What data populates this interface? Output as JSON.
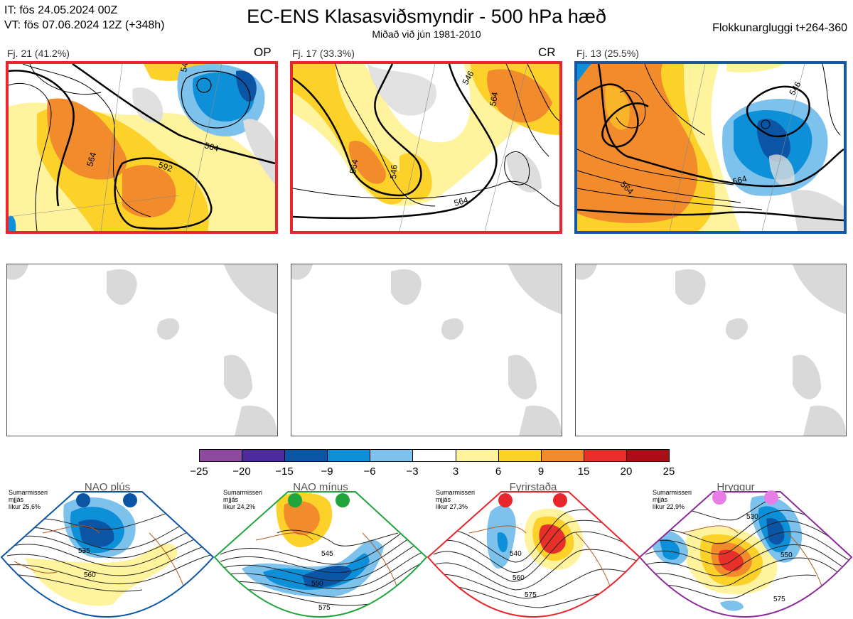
{
  "header": {
    "init_line": "IT: fös 24.05.2024 00Z",
    "valid_line": "VT: fös 07.06.2024 12Z  (+348h)",
    "title": "EC-ENS Klasasviðsmyndir - 500 hPa hæð",
    "subtitle": "Miðað við jún 1981-2010",
    "window": "Flokkunargluggi t+264-360"
  },
  "clusters": [
    {
      "label": "Fj. 21 (41.2%)",
      "tag": "OP",
      "border_color": "#e8262b",
      "contours": [
        "564",
        "592",
        "546",
        "564"
      ]
    },
    {
      "label": "Fj. 17 (33.3%)",
      "tag": "CR",
      "border_color": "#e8262b",
      "contours": [
        "564",
        "546",
        "564",
        "546",
        "564"
      ]
    },
    {
      "label": "Fj. 13 (25.5%)",
      "tag": "",
      "border_color": "#1457a6",
      "contours": [
        "564",
        "564",
        "546"
      ]
    }
  ],
  "colorbar": {
    "ticks": [
      "−25",
      "−20",
      "−15",
      "−9",
      "−6",
      "−3",
      "3",
      "6",
      "9",
      "15",
      "20",
      "25"
    ],
    "colors": [
      "#8e4a9f",
      "#4b2c9a",
      "#0c55a5",
      "#0e90d8",
      "#7cc2ec",
      "#ffffff",
      "#fff39e",
      "#fcd22a",
      "#f28b2c",
      "#e8302a",
      "#ab0e17"
    ]
  },
  "regimes": [
    {
      "name": "NAO plús",
      "season": "Sumarmisseri",
      "avg": "mjjás",
      "prob": "líkur 25,6%",
      "dot_color": "#0c55a5",
      "frame_color": "#0c55a5",
      "contours": [
        "535",
        "560"
      ]
    },
    {
      "name": "NAO mínus",
      "season": "Sumarmisseri",
      "avg": "mjjás",
      "prob": "líkur 24,2%",
      "dot_color": "#1fa53c",
      "frame_color": "#1fa53c",
      "contours": [
        "545",
        "560",
        "575"
      ]
    },
    {
      "name": "Fyrirstaða",
      "season": "Sumarmisseri",
      "avg": "mjjás",
      "prob": "líkur 27,3%",
      "dot_color": "#e8262b",
      "frame_color": "#e8262b",
      "contours": [
        "540",
        "560",
        "575"
      ]
    },
    {
      "name": "Hryggur",
      "season": "Sumarmisseri",
      "avg": "mjjás",
      "prob": "líkur 22,9%",
      "dot_color": "#e77ee8",
      "frame_color": "#8b2a9a",
      "contours": [
        "530",
        "550",
        "575"
      ]
    }
  ]
}
